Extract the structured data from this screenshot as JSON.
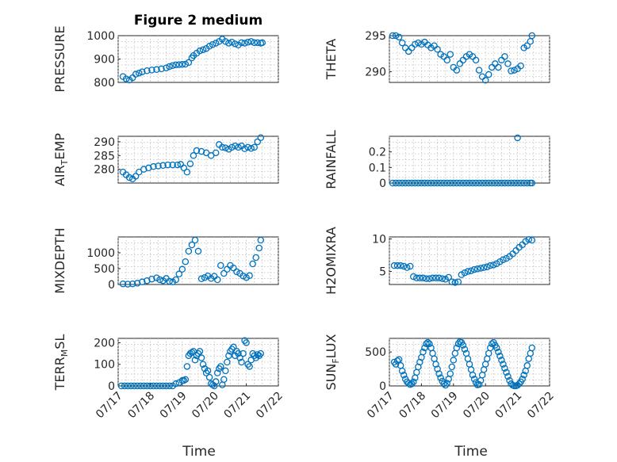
{
  "figure": {
    "title": "Figure 2 medium",
    "xlabel": "Time"
  },
  "chart_data": [
    {
      "type": "scatter",
      "title": "Figure 2 medium",
      "ylabel": "PRESSURE",
      "xlabel": "",
      "xlim": [
        0,
        5
      ],
      "ylim": [
        800,
        1000
      ],
      "yticks": [
        "800",
        "900",
        "1000"
      ],
      "ytick_values": [
        800,
        900,
        1000
      ],
      "xtick_labels": [],
      "grid": true,
      "marker_color": "#0072BD",
      "x": [
        0.15,
        0.25,
        0.35,
        0.45,
        0.55,
        0.65,
        0.75,
        0.9,
        1.05,
        1.2,
        1.35,
        1.5,
        1.6,
        1.7,
        1.8,
        1.9,
        2.0,
        2.1,
        2.2,
        2.3,
        2.35,
        2.45,
        2.55,
        2.65,
        2.75,
        2.85,
        2.95,
        3.05,
        3.15,
        3.25,
        3.35,
        3.45,
        3.55,
        3.65,
        3.75,
        3.85,
        3.95,
        4.05,
        4.15,
        4.25,
        4.35,
        4.45,
        4.5
      ],
      "y": [
        825,
        815,
        810,
        820,
        835,
        840,
        845,
        850,
        853,
        855,
        858,
        862,
        868,
        872,
        875,
        876,
        877,
        878,
        885,
        905,
        915,
        925,
        935,
        940,
        945,
        955,
        962,
        968,
        975,
        985,
        975,
        968,
        972,
        965,
        960,
        970,
        968,
        972,
        975,
        970,
        970,
        968,
        970
      ]
    },
    {
      "type": "scatter",
      "title": "",
      "ylabel": "THETA",
      "xlabel": "",
      "xlim": [
        0,
        5
      ],
      "ylim": [
        288.5,
        295
      ],
      "yticks": [
        "290",
        "295"
      ],
      "ytick_values": [
        290,
        295
      ],
      "xtick_labels": [],
      "grid": true,
      "marker_color": "#0072BD",
      "x": [
        0.1,
        0.2,
        0.3,
        0.4,
        0.5,
        0.6,
        0.7,
        0.8,
        0.9,
        1.0,
        1.1,
        1.2,
        1.3,
        1.4,
        1.5,
        1.6,
        1.7,
        1.8,
        1.9,
        2.0,
        2.1,
        2.2,
        2.3,
        2.4,
        2.5,
        2.6,
        2.7,
        2.8,
        2.9,
        3.0,
        3.1,
        3.2,
        3.3,
        3.4,
        3.5,
        3.6,
        3.7,
        3.8,
        3.9,
        4.0,
        4.1,
        4.2,
        4.3,
        4.4,
        4.45
      ],
      "y": [
        295,
        295,
        294.8,
        294,
        293.3,
        292.8,
        293.3,
        293.8,
        294,
        293.8,
        294.1,
        293.7,
        293.3,
        293.6,
        293.1,
        292.4,
        292.1,
        291.6,
        292.4,
        290.6,
        290.2,
        291.1,
        291.6,
        292.1,
        292.4,
        292.1,
        291.6,
        290.2,
        289.3,
        288.8,
        289.6,
        290.6,
        291.1,
        290.6,
        291.6,
        292.1,
        291.1,
        290.1,
        290.2,
        290.4,
        290.8,
        293.3,
        293.6,
        294.2,
        295
      ]
    },
    {
      "type": "scatter",
      "title": "",
      "ylabel": "AIR_TEMP",
      "xlabel": "",
      "xlim": [
        0,
        5
      ],
      "ylim": [
        275,
        292
      ],
      "yticks": [
        "280",
        "285",
        "290"
      ],
      "ytick_values": [
        280,
        285,
        290
      ],
      "xtick_labels": [],
      "grid": true,
      "marker_color": "#0072BD",
      "x": [
        0.15,
        0.25,
        0.35,
        0.45,
        0.55,
        0.65,
        0.8,
        0.95,
        1.1,
        1.25,
        1.4,
        1.55,
        1.7,
        1.85,
        1.95,
        2.05,
        2.15,
        2.25,
        2.35,
        2.45,
        2.6,
        2.75,
        2.9,
        3.05,
        3.15,
        3.25,
        3.35,
        3.45,
        3.55,
        3.65,
        3.75,
        3.85,
        3.95,
        4.05,
        4.15,
        4.25,
        4.35,
        4.45
      ],
      "y": [
        279,
        278,
        277,
        276.5,
        277.5,
        279,
        280,
        280.5,
        281,
        281.2,
        281.4,
        281.6,
        281.6,
        281.6,
        281.8,
        280.5,
        279,
        282,
        285,
        286.8,
        286.5,
        286,
        285,
        286,
        289,
        288,
        287.8,
        287.3,
        288,
        288.5,
        288,
        288.5,
        287.5,
        288,
        287.6,
        288,
        290,
        291.5
      ]
    },
    {
      "type": "scatter",
      "title": "",
      "ylabel": "RAINFALL",
      "xlabel": "",
      "xlim": [
        0,
        5
      ],
      "ylim": [
        0,
        0.3
      ],
      "yticks": [
        "0",
        "0.1",
        "0.2"
      ],
      "ytick_values": [
        0,
        0.1,
        0.2
      ],
      "xtick_labels": [],
      "grid": true,
      "marker_color": "#0072BD",
      "x": [
        0.1,
        0.2,
        0.3,
        0.4,
        0.5,
        0.6,
        0.7,
        0.8,
        0.9,
        1.0,
        1.1,
        1.2,
        1.3,
        1.4,
        1.5,
        1.6,
        1.7,
        1.8,
        1.9,
        2.0,
        2.1,
        2.2,
        2.3,
        2.4,
        2.5,
        2.6,
        2.7,
        2.8,
        2.9,
        3.0,
        3.1,
        3.2,
        3.3,
        3.4,
        3.5,
        3.6,
        3.7,
        3.8,
        3.9,
        4.0,
        4.1,
        4.2,
        4.3,
        4.4,
        4.45,
        4.0
      ],
      "y": [
        0,
        0,
        0,
        0,
        0,
        0,
        0,
        0,
        0,
        0,
        0,
        0,
        0,
        0,
        0,
        0,
        0,
        0,
        0,
        0,
        0,
        0,
        0,
        0,
        0,
        0,
        0,
        0,
        0,
        0,
        0,
        0,
        0,
        0,
        0,
        0,
        0,
        0,
        0,
        0,
        0,
        0,
        0,
        0,
        0,
        0.29
      ]
    },
    {
      "type": "scatter",
      "title": "",
      "ylabel": "MIXDEPTH",
      "xlabel": "",
      "xlim": [
        0,
        5
      ],
      "ylim": [
        0,
        1500
      ],
      "yticks": [
        "0",
        "500",
        "1000"
      ],
      "ytick_values": [
        0,
        500,
        1000
      ],
      "xtick_labels": [],
      "grid": true,
      "marker_color": "#0072BD",
      "x": [
        0.15,
        0.3,
        0.45,
        0.6,
        0.75,
        0.9,
        1.05,
        1.2,
        1.3,
        1.4,
        1.5,
        1.6,
        1.7,
        1.8,
        1.9,
        2.0,
        2.1,
        2.2,
        2.3,
        2.4,
        2.5,
        2.6,
        2.7,
        2.8,
        2.9,
        3.0,
        3.1,
        3.2,
        3.3,
        3.4,
        3.5,
        3.6,
        3.7,
        3.8,
        3.9,
        4.0,
        4.1,
        4.2,
        4.3,
        4.4,
        4.45
      ],
      "y": [
        20,
        10,
        20,
        40,
        80,
        120,
        170,
        210,
        150,
        120,
        190,
        100,
        80,
        150,
        330,
        480,
        720,
        1050,
        1250,
        1400,
        1050,
        180,
        220,
        270,
        190,
        260,
        150,
        600,
        350,
        480,
        600,
        520,
        400,
        350,
        270,
        220,
        280,
        650,
        850,
        1150,
        1400
      ]
    },
    {
      "type": "scatter",
      "title": "",
      "ylabel": "H2OMIXRA",
      "xlabel": "",
      "xlim": [
        0,
        5
      ],
      "ylim": [
        3,
        10.3
      ],
      "yticks": [
        "5",
        "10"
      ],
      "ytick_values": [
        5,
        10
      ],
      "xtick_labels": [],
      "grid": true,
      "marker_color": "#0072BD",
      "x": [
        0.15,
        0.25,
        0.35,
        0.45,
        0.55,
        0.65,
        0.75,
        0.85,
        0.95,
        1.05,
        1.15,
        1.25,
        1.35,
        1.45,
        1.55,
        1.65,
        1.75,
        1.85,
        1.95,
        2.05,
        2.15,
        2.25,
        2.35,
        2.45,
        2.55,
        2.65,
        2.75,
        2.85,
        2.95,
        3.05,
        3.15,
        3.25,
        3.35,
        3.45,
        3.55,
        3.65,
        3.75,
        3.85,
        3.95,
        4.05,
        4.15,
        4.25,
        4.35,
        4.45
      ],
      "y": [
        5.9,
        5.9,
        5.9,
        5.8,
        5.6,
        5.8,
        4.2,
        4.0,
        4.0,
        4.0,
        3.9,
        3.9,
        4.0,
        4.0,
        4.0,
        3.9,
        3.8,
        4.1,
        3.4,
        3.3,
        3.4,
        4.5,
        4.8,
        5.0,
        5.1,
        5.3,
        5.4,
        5.5,
        5.6,
        5.7,
        5.9,
        6.0,
        6.2,
        6.5,
        6.8,
        7.0,
        7.3,
        7.7,
        8.2,
        8.7,
        9.1,
        9.6,
        9.9,
        9.8
      ]
    },
    {
      "type": "scatter",
      "title": "",
      "ylabel": "TERR_MSL",
      "xlabel": "Time",
      "xlim": [
        0,
        5
      ],
      "ylim": [
        0,
        220
      ],
      "yticks": [
        "0",
        "100",
        "200"
      ],
      "ytick_values": [
        0,
        100,
        200
      ],
      "xtick_labels": [
        "07/17",
        "07/18",
        "07/19",
        "07/20",
        "07/21",
        "07/22"
      ],
      "xtick_values": [
        0,
        1,
        2,
        3,
        4,
        5
      ],
      "grid": true,
      "marker_color": "#0072BD",
      "x": [
        0.1,
        0.2,
        0.3,
        0.4,
        0.5,
        0.6,
        0.7,
        0.8,
        0.9,
        1.0,
        1.1,
        1.2,
        1.3,
        1.4,
        1.5,
        1.6,
        1.7,
        1.8,
        1.9,
        2.0,
        2.05,
        2.1,
        2.15,
        2.2,
        2.25,
        2.3,
        2.35,
        2.4,
        2.45,
        2.5,
        2.55,
        2.6,
        2.65,
        2.7,
        2.75,
        2.8,
        2.85,
        2.9,
        2.95,
        3.0,
        3.05,
        3.1,
        3.15,
        3.2,
        3.25,
        3.3,
        3.35,
        3.4,
        3.45,
        3.5,
        3.55,
        3.6,
        3.65,
        3.7,
        3.75,
        3.8,
        3.85,
        3.9,
        3.95,
        4.0,
        4.05,
        4.1,
        4.15,
        4.2,
        4.25,
        4.3,
        4.35,
        4.4,
        4.45
      ],
      "y": [
        0,
        0,
        0,
        0,
        0,
        0,
        0,
        0,
        0,
        0,
        0,
        0,
        0,
        0,
        0,
        0,
        0,
        10,
        15,
        25,
        25,
        30,
        90,
        140,
        150,
        155,
        160,
        120,
        140,
        150,
        160,
        130,
        100,
        80,
        60,
        70,
        40,
        10,
        5,
        0,
        20,
        60,
        80,
        90,
        5,
        30,
        70,
        110,
        140,
        160,
        170,
        180,
        140,
        160,
        150,
        130,
        110,
        150,
        210,
        200,
        100,
        90,
        120,
        150,
        140,
        130,
        145,
        140,
        150
      ]
    },
    {
      "type": "scatter",
      "title": "",
      "ylabel": "SUN_FLUX",
      "xlabel": "Time",
      "xlim": [
        0,
        5
      ],
      "ylim": [
        0,
        700
      ],
      "yticks": [
        "0",
        "500"
      ],
      "ytick_values": [
        0,
        500
      ],
      "xtick_labels": [
        "07/17",
        "07/18",
        "07/19",
        "07/20",
        "07/21",
        "07/22"
      ],
      "xtick_values": [
        0,
        1,
        2,
        3,
        4,
        5
      ],
      "grid": true,
      "marker_color": "#0072BD",
      "x": [
        0.15,
        0.2,
        0.25,
        0.3,
        0.35,
        0.4,
        0.45,
        0.5,
        0.55,
        0.6,
        0.65,
        0.7,
        0.75,
        0.8,
        0.85,
        0.9,
        0.95,
        1.0,
        1.05,
        1.1,
        1.15,
        1.2,
        1.25,
        1.3,
        1.35,
        1.4,
        1.45,
        1.5,
        1.55,
        1.6,
        1.65,
        1.7,
        1.75,
        1.8,
        1.85,
        1.9,
        1.95,
        2.0,
        2.05,
        2.1,
        2.15,
        2.2,
        2.25,
        2.3,
        2.35,
        2.4,
        2.45,
        2.5,
        2.55,
        2.6,
        2.65,
        2.7,
        2.75,
        2.8,
        2.85,
        2.9,
        2.95,
        3.0,
        3.05,
        3.1,
        3.15,
        3.2,
        3.25,
        3.3,
        3.35,
        3.4,
        3.45,
        3.5,
        3.55,
        3.6,
        3.65,
        3.7,
        3.75,
        3.8,
        3.85,
        3.9,
        3.95,
        4.0,
        4.05,
        4.1,
        4.15,
        4.2,
        4.25,
        4.3,
        4.35,
        4.4,
        4.45
      ],
      "y": [
        350,
        320,
        370,
        390,
        300,
        220,
        160,
        100,
        60,
        40,
        20,
        30,
        60,
        120,
        200,
        280,
        350,
        420,
        500,
        560,
        620,
        640,
        620,
        560,
        480,
        400,
        320,
        250,
        180,
        120,
        70,
        30,
        10,
        40,
        100,
        180,
        280,
        380,
        480,
        560,
        620,
        650,
        640,
        600,
        540,
        480,
        400,
        320,
        240,
        160,
        100,
        50,
        15,
        20,
        80,
        160,
        240,
        320,
        400,
        480,
        560,
        620,
        640,
        600,
        560,
        500,
        440,
        380,
        320,
        260,
        200,
        140,
        80,
        30,
        10,
        0,
        0,
        10,
        30,
        60,
        100,
        160,
        220,
        300,
        400,
        480,
        560
      ]
    }
  ]
}
